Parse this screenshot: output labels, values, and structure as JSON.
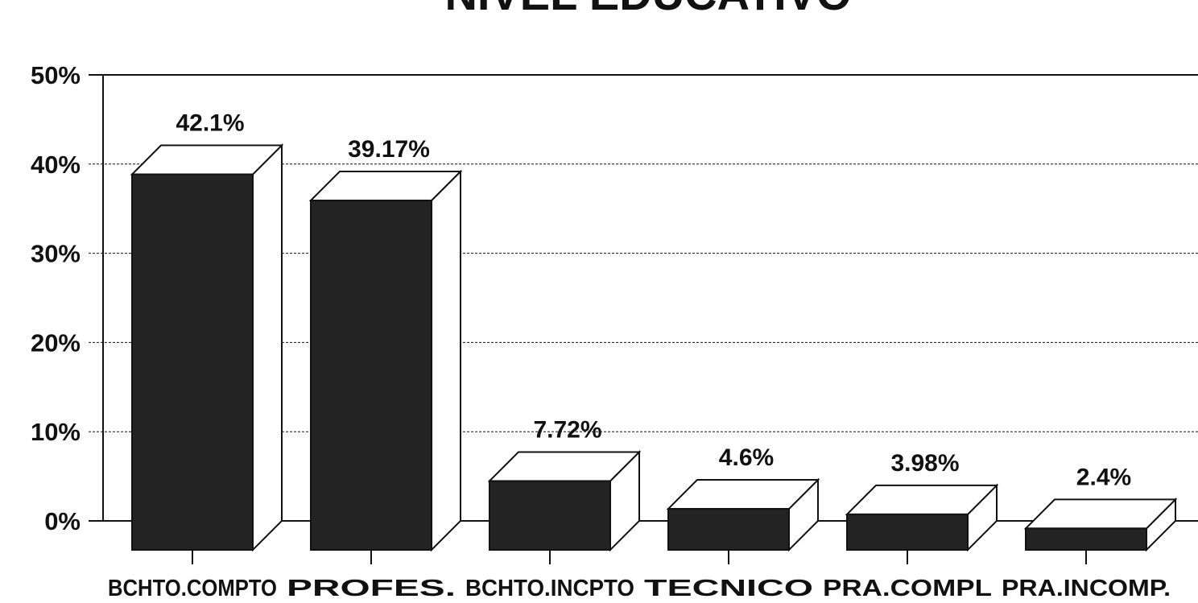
{
  "chart_data": {
    "type": "bar3d",
    "title": "NIVEL EDUCATIVO",
    "categories": [
      "BCHTO.COMPTO",
      "PROFES.",
      "BCHTO.INCPTO",
      "TECNICO",
      "PRA.COMPL",
      "PRA.INCOMP."
    ],
    "values": [
      42.1,
      39.17,
      7.72,
      4.6,
      3.98,
      2.4
    ],
    "value_labels": [
      "42.1%",
      "39.17%",
      "7.72%",
      "4.6%",
      "3.98%",
      "2.4%"
    ],
    "color": "#232323",
    "ylim": [
      0,
      50
    ],
    "yticks": [
      {
        "value": 0,
        "label": "0%"
      },
      {
        "value": 10,
        "label": "10%"
      },
      {
        "value": 20,
        "label": "20%"
      },
      {
        "value": 30,
        "label": "30%"
      },
      {
        "value": 40,
        "label": "40%"
      },
      {
        "value": 50,
        "label": "50%"
      }
    ],
    "grid": true
  }
}
